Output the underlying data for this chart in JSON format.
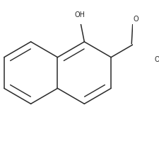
{
  "background": "#ffffff",
  "bond_color": "#2a2a2a",
  "bond_lw": 1.1,
  "dbo": 0.055,
  "font_size": 7.0,
  "label_color": "#2a2a2a",
  "r_naph": 0.28,
  "r_ph": 0.22,
  "xlim": [
    -0.08,
    1.12
  ],
  "ylim": [
    0.05,
    0.92
  ]
}
